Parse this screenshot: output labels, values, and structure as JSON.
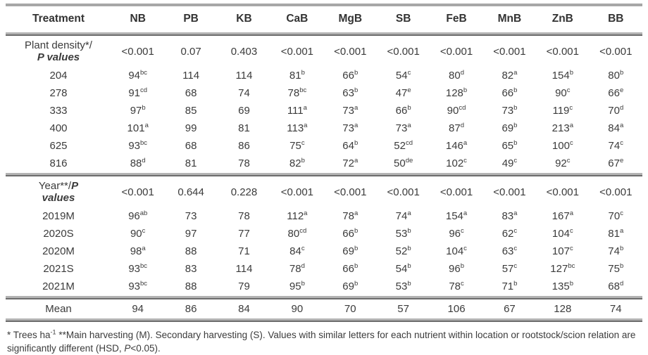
{
  "colors": {
    "text": "#3b3b3b",
    "rule_light": "#b3b3b3",
    "rule_dark": "#6d6d6d"
  },
  "table": {
    "columns": [
      "Treatment",
      "NB",
      "PB",
      "KB",
      "CaB",
      "MgB",
      "SB",
      "FeB",
      "MnB",
      "ZnB",
      "BB"
    ],
    "sections": [
      {
        "label_line1_plain": "Plant density*/",
        "label_line1_italic": "",
        "label_line2_italic": "P values",
        "p_values": [
          "<0.001",
          "0.07",
          "0.403",
          "<0.001",
          "<0.001",
          "<0.001",
          "<0.001",
          "<0.001",
          "<0.001",
          "<0.001"
        ],
        "rows": [
          {
            "label": "204",
            "cells": [
              "94^bc",
              "114",
              "114",
              "81^b",
              "66^b",
              "54^c",
              "80^d",
              "82^a",
              "154^b",
              "80^b"
            ]
          },
          {
            "label": "278",
            "cells": [
              "91^cd",
              "68",
              "74",
              "78^bc",
              "63^b",
              "47^e",
              "128^b",
              "66^b",
              "90^c",
              "66^e"
            ]
          },
          {
            "label": "333",
            "cells": [
              "97^b",
              "85",
              "69",
              "111^a",
              "73^a",
              "66^b",
              "90^cd",
              "73^b",
              "119^c",
              "70^d"
            ]
          },
          {
            "label": "400",
            "cells": [
              "101^a",
              "99",
              "81",
              "113^a",
              "73^a",
              "73^a",
              "87^d",
              "69^b",
              "213^a",
              "84^a"
            ]
          },
          {
            "label": "625",
            "cells": [
              "93^bc",
              "68",
              "86",
              "75^c",
              "64^b",
              "52^cd",
              "146^a",
              "65^b",
              "100^c",
              "74^c"
            ]
          },
          {
            "label": "816",
            "cells": [
              "88^d",
              "81",
              "78",
              "82^b",
              "72^a",
              "50^de",
              "102^c",
              "49^c",
              "92^c",
              "67^e"
            ]
          }
        ]
      },
      {
        "label_line1_plain": "Year**/",
        "label_line1_italic": "P",
        "label_line2_italic": "values",
        "p_values": [
          "<0.001",
          "0.644",
          "0.228",
          "<0.001",
          "<0.001",
          "<0.001",
          "<0.001",
          "<0.001",
          "<0.001",
          "<0.001"
        ],
        "rows": [
          {
            "label": "2019M",
            "cells": [
              "96^ab",
              "73",
              "78",
              "112^a",
              "78^a",
              "74^a",
              "154^a",
              "83^a",
              "167^a",
              "70^c"
            ]
          },
          {
            "label": "2020S",
            "cells": [
              "90^c",
              "97",
              "77",
              "80^cd",
              "66^b",
              "53^b",
              "96^c",
              "62^c",
              "104^c",
              "81^a"
            ]
          },
          {
            "label": "2020M",
            "cells": [
              "98^a",
              "88",
              "71",
              "84^c",
              "69^b",
              "52^b",
              "104^c",
              "63^c",
              "107^c",
              "74^b"
            ]
          },
          {
            "label": "2021S",
            "cells": [
              "93^bc",
              "83",
              "114",
              "78^d",
              "66^b",
              "54^b",
              "96^b",
              "57^c",
              "127^bc",
              "75^b"
            ]
          },
          {
            "label": "2021M",
            "cells": [
              "93^bc",
              "88",
              "79",
              "95^b",
              "69^b",
              "53^b",
              "78^c",
              "71^b",
              "135^b",
              "68^d"
            ]
          }
        ]
      }
    ],
    "mean_row": {
      "label": "Mean",
      "cells": [
        "94",
        "86",
        "84",
        "90",
        "70",
        "57",
        "106",
        "67",
        "128",
        "74"
      ]
    }
  },
  "footnote": {
    "part1": "* Trees ha",
    "sup": "-1",
    "part2": " **Main harvesting (M). Secondary harvesting (S). Values with similar letters for each nutrient within location or rootstock/scion relation are significantly different (HSD, ",
    "italic": "P",
    "part3": "<0.05)."
  }
}
